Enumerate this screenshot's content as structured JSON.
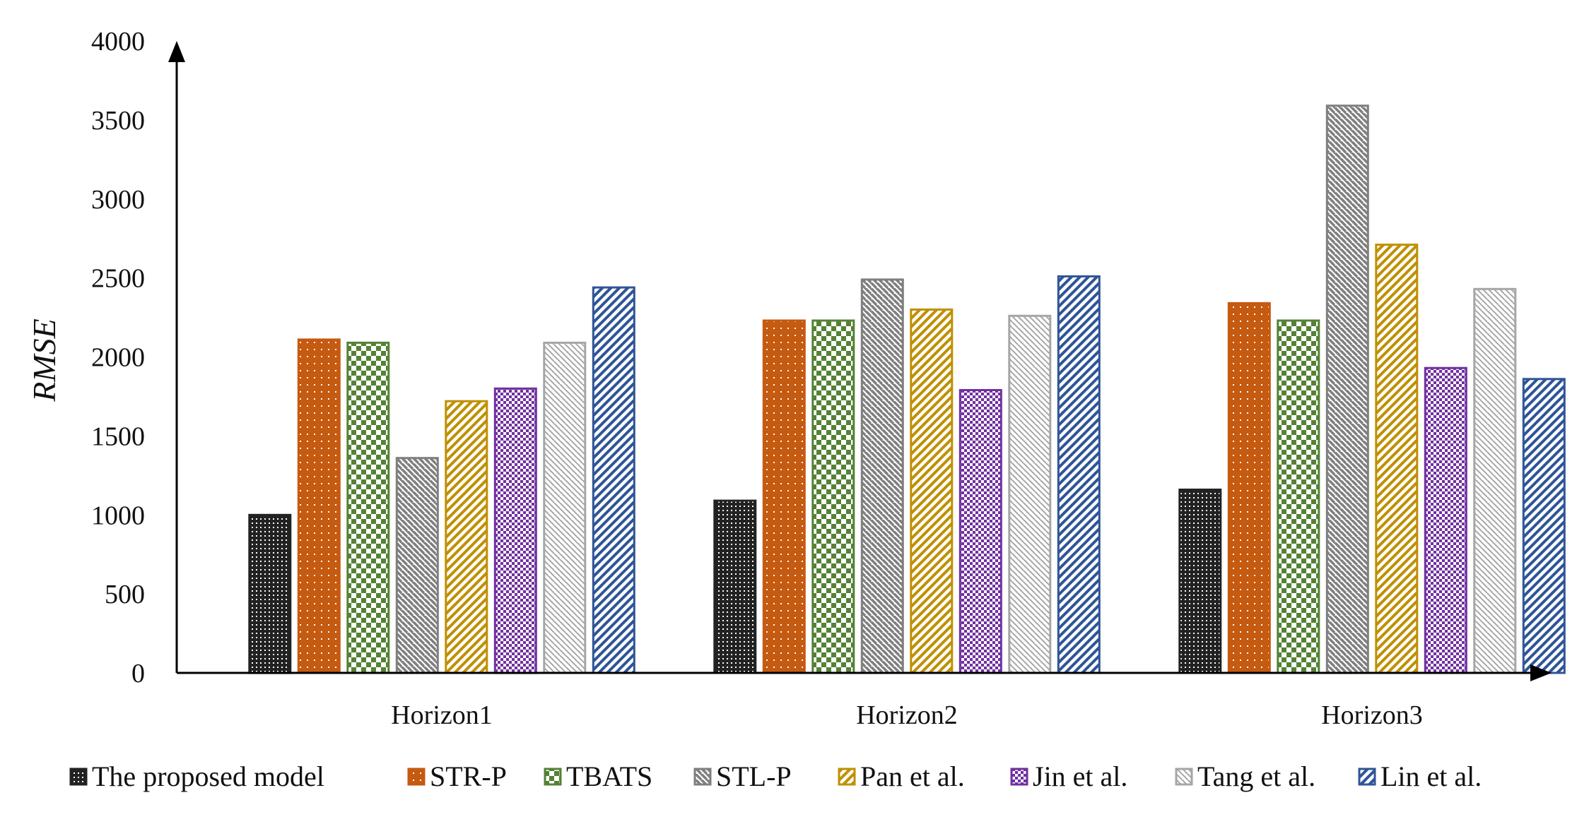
{
  "chart_data": {
    "type": "bar",
    "title": "",
    "xlabel": "",
    "ylabel": "RMSE",
    "ylim": [
      0,
      4000
    ],
    "yticks": [
      "0",
      "500",
      "1000",
      "1500",
      "2000",
      "2500",
      "3000",
      "3500",
      "4000"
    ],
    "categories": [
      "Horizon1",
      "Horizon2",
      "Horizon3"
    ],
    "legend_position": "bottom",
    "series": [
      {
        "name": "The proposed model",
        "color": "#222222",
        "pattern": "dense-dots",
        "values": [
          1000,
          1090,
          1160
        ]
      },
      {
        "name": "STR-P",
        "color": "#c55a11",
        "pattern": "sparse-dots",
        "values": [
          2110,
          2230,
          2340
        ]
      },
      {
        "name": "TBATS",
        "color": "#548235",
        "pattern": "checker",
        "values": [
          2090,
          2230,
          2230
        ]
      },
      {
        "name": "STL-P",
        "color": "#7f7f7f",
        "pattern": "dark-diagonal",
        "values": [
          1360,
          2490,
          3590
        ]
      },
      {
        "name": "Pan et al.",
        "color": "#bf9000",
        "pattern": "wide-diagonal",
        "values": [
          1720,
          2300,
          2710
        ]
      },
      {
        "name": "Jin et al.",
        "color": "#7030a0",
        "pattern": "small-checker",
        "values": [
          1800,
          1790,
          1930
        ]
      },
      {
        "name": "Tang et al.",
        "color": "#a6a6a6",
        "pattern": "light-diagonal",
        "values": [
          2090,
          2260,
          2430
        ]
      },
      {
        "name": "Lin et al.",
        "color": "#2f5597",
        "pattern": "wide-upward-diagonal",
        "values": [
          2440,
          2510,
          1860
        ]
      }
    ]
  }
}
